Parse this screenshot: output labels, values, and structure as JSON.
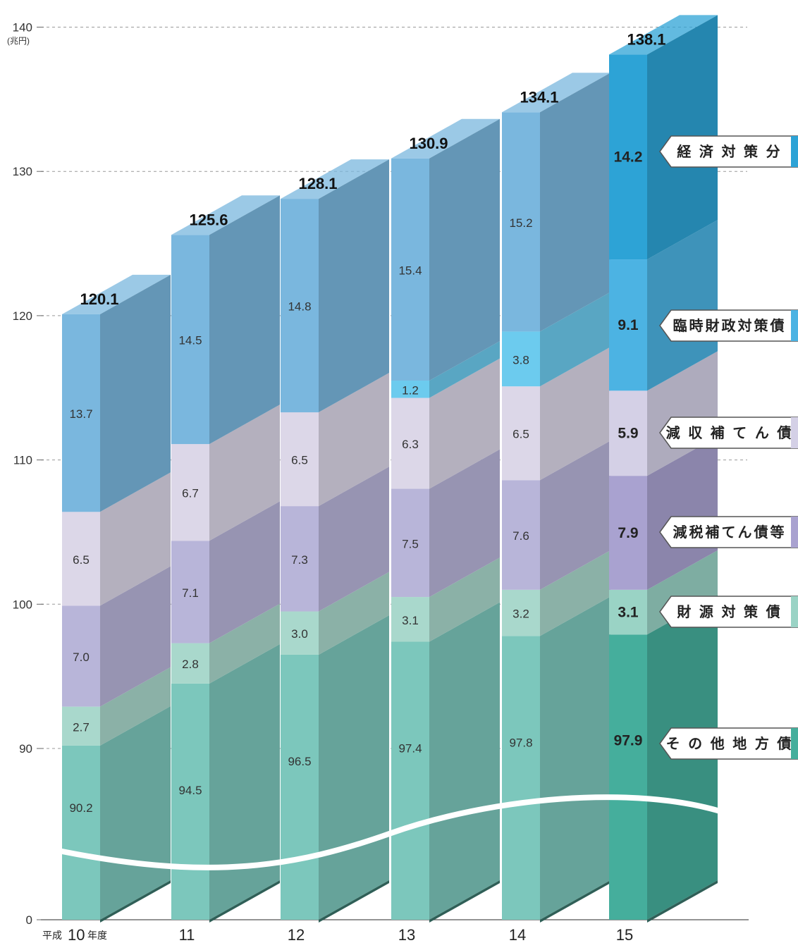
{
  "chart_data": {
    "type": "bar",
    "subtype": "stacked-3d",
    "unit": "(兆円)",
    "yticks": [
      "0",
      "90",
      "100",
      "110",
      "120",
      "130",
      "140"
    ],
    "axis_break": true,
    "grid": true,
    "categories": [
      "10",
      "11",
      "12",
      "13",
      "14",
      "15"
    ],
    "category_prefix": "平成",
    "category_suffix": "年度",
    "totals": [
      120.1,
      125.6,
      128.1,
      130.9,
      134.1,
      138.1
    ],
    "series": [
      {
        "name": "その他地方債",
        "values": [
          90.2,
          94.5,
          96.5,
          97.4,
          97.8,
          97.9
        ],
        "color": "#7cc7bc",
        "color_last": "#45ae9c"
      },
      {
        "name": "財源対策債",
        "values": [
          2.7,
          2.8,
          3.0,
          3.1,
          3.2,
          3.1
        ],
        "color": "#a9d8cc",
        "color_last": "#9ad3c5"
      },
      {
        "name": "減税補てん債等",
        "values": [
          7.0,
          7.1,
          7.3,
          7.5,
          7.6,
          7.9
        ],
        "color": "#b8b5d9",
        "color_last": "#a9a2d0"
      },
      {
        "name": "減収補てん債",
        "values": [
          6.5,
          6.7,
          6.5,
          6.3,
          6.5,
          5.9
        ],
        "color": "#dcd7e8",
        "color_last": "#d4d0e6"
      },
      {
        "name": "臨時財政対策債",
        "values": [
          0,
          0,
          0,
          1.2,
          3.8,
          9.1
        ],
        "color": "#6ccbee",
        "color_last": "#4cb3e3"
      },
      {
        "name": "経済対策分",
        "values": [
          13.7,
          14.5,
          14.8,
          15.4,
          15.2,
          14.2
        ],
        "color": "#7ab7de",
        "color_last": "#2da3d6"
      }
    ],
    "segment_labels": [
      [
        "90.2",
        "94.5",
        "96.5",
        "97.4",
        "97.8",
        "97.9"
      ],
      [
        "2.7",
        "2.8",
        "3.0",
        "3.1",
        "3.2",
        "3.1"
      ],
      [
        "7.0",
        "7.1",
        "7.3",
        "7.5",
        "7.6",
        "7.9"
      ],
      [
        "6.5",
        "6.7",
        "6.5",
        "6.3",
        "6.5",
        "5.9"
      ],
      [
        "",
        "",
        "",
        "1.2",
        "3.8",
        "9.1"
      ],
      [
        "13.7",
        "14.5",
        "14.8",
        "15.4",
        "15.2",
        "14.2"
      ]
    ],
    "total_labels": [
      "120.1",
      "125.6",
      "128.1",
      "130.9",
      "134.1",
      "138.1"
    ],
    "legend": [
      "経 済 対 策 分",
      "臨時財政対策債",
      "減 収 補 て ん 債",
      "減税補てん債等",
      "財 源 対 策 債",
      "そ の 他 地 方 債"
    ],
    "legend_placement": "right"
  }
}
